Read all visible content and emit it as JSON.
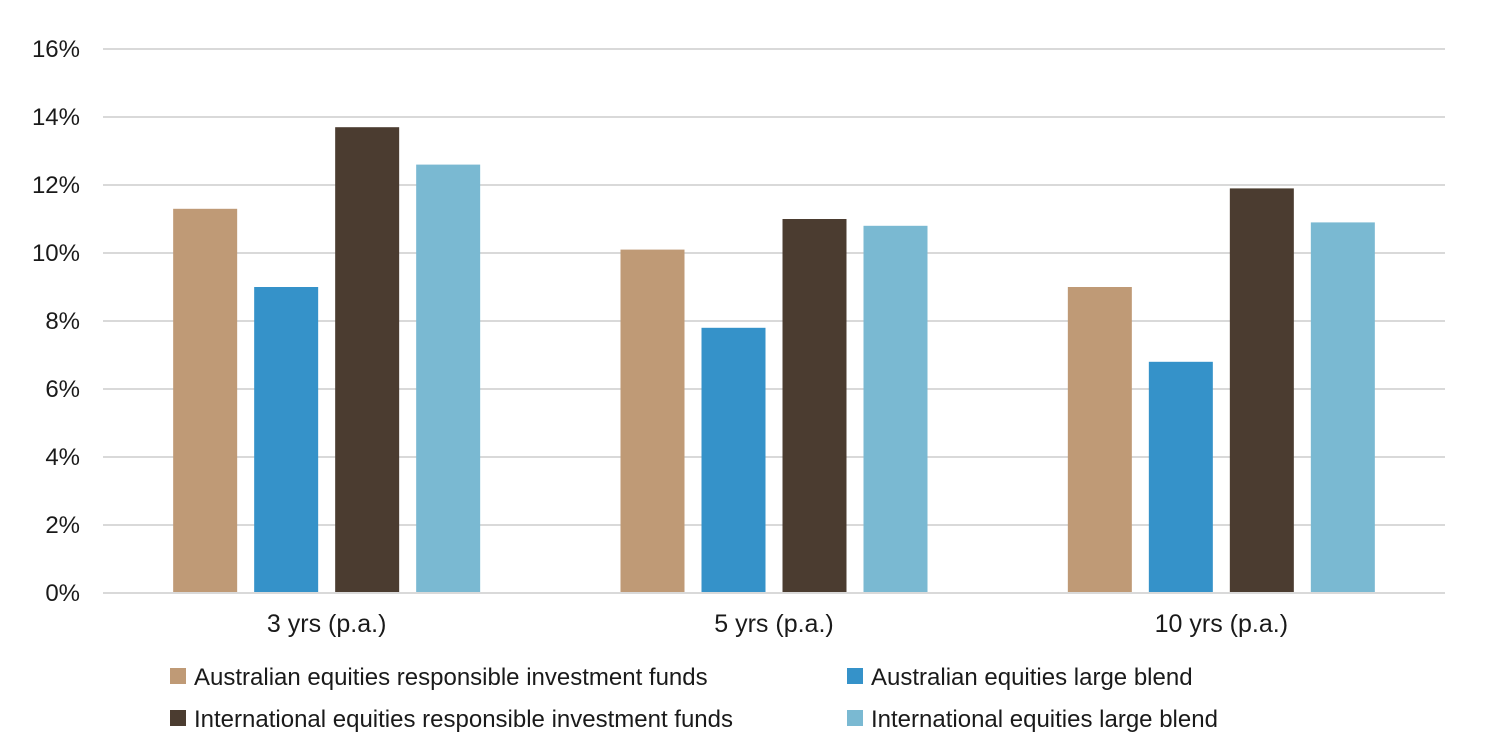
{
  "chart_data": {
    "type": "bar",
    "categories": [
      "3 yrs (p.a.)",
      "5 yrs (p.a.)",
      "10 yrs (p.a.)"
    ],
    "series": [
      {
        "name": "Australian equities responsible investment funds",
        "color": "#bf9a76",
        "values": [
          11.3,
          10.1,
          9.0
        ]
      },
      {
        "name": "Australian equities large blend",
        "color": "#3592c9",
        "values": [
          9.0,
          7.8,
          6.8
        ]
      },
      {
        "name": "International equities responsible investment funds",
        "color": "#4b3c30",
        "values": [
          13.7,
          11.0,
          11.9
        ]
      },
      {
        "name": "International equities large blend",
        "color": "#7ab9d2",
        "values": [
          12.6,
          10.8,
          10.9
        ]
      }
    ],
    "ylim": [
      0,
      16
    ],
    "yticks": [
      "0%",
      "2%",
      "4%",
      "6%",
      "8%",
      "10%",
      "12%",
      "14%",
      "16%"
    ],
    "ytick_values": [
      0,
      2,
      4,
      6,
      8,
      10,
      12,
      14,
      16
    ],
    "grid": true,
    "gridline_color": "#d9d9d9",
    "legend_position": "bottom",
    "title": "",
    "xlabel": "",
    "ylabel": ""
  }
}
